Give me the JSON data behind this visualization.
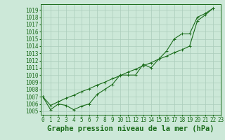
{
  "series_jagged": [
    1007.0,
    1005.2,
    1006.0,
    1005.8,
    1005.2,
    1005.7,
    1006.0,
    1007.3,
    1008.0,
    1008.7,
    1010.0,
    1010.0,
    1010.0,
    1011.5,
    1011.0,
    1012.2,
    1013.3,
    1015.0,
    1015.7,
    1015.7,
    1018.0,
    1018.5,
    1019.2
  ],
  "series_smooth": [
    1007.0,
    1005.8,
    1006.3,
    1006.8,
    1007.2,
    1007.7,
    1008.1,
    1008.6,
    1009.0,
    1009.5,
    1009.9,
    1010.4,
    1010.8,
    1011.3,
    1011.7,
    1012.2,
    1012.6,
    1013.1,
    1013.5,
    1014.0,
    1017.5,
    1018.3,
    1019.2
  ],
  "x": [
    0,
    1,
    2,
    3,
    4,
    5,
    6,
    7,
    8,
    9,
    10,
    11,
    12,
    13,
    14,
    15,
    16,
    17,
    18,
    19,
    20,
    21,
    22
  ],
  "line_color": "#1a6b1a",
  "bg_color": "#cce8d8",
  "grid_color": "#aaccbb",
  "axis_color": "#1a6b1a",
  "text_color": "#1a6b1a",
  "ylim": [
    1004.5,
    1019.8
  ],
  "xlim": [
    -0.3,
    23.0
  ],
  "yticks": [
    1005,
    1006,
    1007,
    1008,
    1009,
    1010,
    1011,
    1012,
    1013,
    1014,
    1015,
    1016,
    1017,
    1018,
    1019
  ],
  "xticks": [
    0,
    1,
    2,
    3,
    4,
    5,
    6,
    7,
    8,
    9,
    10,
    11,
    12,
    13,
    14,
    15,
    16,
    17,
    18,
    19,
    20,
    21,
    22,
    23
  ],
  "xlabel": "Graphe pression niveau de la mer (hPa)",
  "tick_fontsize": 5.5,
  "xlabel_fontsize": 7.5,
  "marker_size": 3.0,
  "linewidth": 0.8
}
